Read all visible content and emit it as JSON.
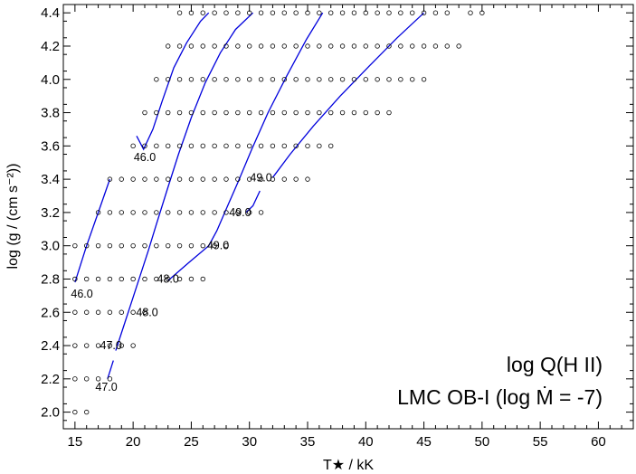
{
  "chart_data": {
    "type": "scatter",
    "title_lines": [
      "log Q(H II)",
      "LMC OB-I (log Ṁ = -7)"
    ],
    "xlabel": "T★ / kK",
    "ylabel": "log (g / (cm s⁻²))",
    "xlim": [
      14,
      63
    ],
    "ylim": [
      1.9,
      4.45
    ],
    "xticks": [
      15,
      20,
      25,
      30,
      35,
      40,
      45,
      50,
      55,
      60
    ],
    "xtick_labels": [
      "15",
      "20",
      "25",
      "30",
      "35",
      "40",
      "45",
      "50",
      "55",
      "60"
    ],
    "yticks": [
      2.0,
      2.2,
      2.4,
      2.6,
      2.8,
      3.0,
      3.2,
      3.4,
      3.6,
      3.8,
      4.0,
      4.2,
      4.4
    ],
    "ytick_labels": [
      "2.0",
      "2.2",
      "2.4",
      "2.6",
      "2.8",
      "3.0",
      "3.2",
      "3.4",
      "3.6",
      "3.8",
      "4.0",
      "4.2",
      "4.4"
    ],
    "grid": false,
    "model_grid": [
      {
        "log_g": 4.4,
        "teff_min": 24,
        "teff_max": 47,
        "extra": [
          49,
          50
        ]
      },
      {
        "log_g": 4.2,
        "teff_min": 23,
        "teff_max": 48
      },
      {
        "log_g": 4.0,
        "teff_min": 22,
        "teff_max": 45
      },
      {
        "log_g": 3.8,
        "teff_min": 21,
        "teff_max": 42
      },
      {
        "log_g": 3.6,
        "teff_min": 20,
        "teff_max": 37
      },
      {
        "log_g": 3.4,
        "teff_min": 18,
        "teff_max": 35
      },
      {
        "log_g": 3.2,
        "teff_min": 17,
        "teff_max": 31
      },
      {
        "log_g": 3.0,
        "teff_min": 15,
        "teff_max": 28
      },
      {
        "log_g": 2.8,
        "teff_min": 15,
        "teff_max": 26
      },
      {
        "log_g": 2.6,
        "teff_min": 15,
        "teff_max": 21
      },
      {
        "log_g": 2.4,
        "teff_min": 15,
        "teff_max": 20
      },
      {
        "log_g": 2.2,
        "teff_min": 15,
        "teff_max": 18
      },
      {
        "log_g": 2.0,
        "teff_min": 15,
        "teff_max": 16
      }
    ],
    "contours": [
      {
        "points": [
          [
            15.0,
            2.78
          ],
          [
            16.0,
            3.0
          ],
          [
            17.0,
            3.2
          ],
          [
            18.0,
            3.4
          ]
        ]
      },
      {
        "points": [
          [
            20.3,
            3.66
          ],
          [
            20.9,
            3.58
          ],
          [
            21.7,
            3.7
          ],
          [
            22.5,
            3.87
          ],
          [
            23.5,
            4.07
          ],
          [
            24.6,
            4.22
          ],
          [
            25.8,
            4.35
          ],
          [
            26.5,
            4.4
          ]
        ]
      },
      {
        "points": [
          [
            17.8,
            2.2
          ],
          [
            18.3,
            2.31
          ]
        ]
      },
      {
        "points": [
          [
            18.5,
            2.37
          ],
          [
            19.2,
            2.52
          ],
          [
            19.9,
            2.67
          ],
          [
            20.6,
            2.82
          ],
          [
            21.3,
            2.97
          ],
          [
            22.0,
            3.13
          ],
          [
            22.9,
            3.33
          ],
          [
            23.9,
            3.55
          ],
          [
            25.0,
            3.77
          ],
          [
            26.2,
            3.98
          ],
          [
            27.5,
            4.16
          ],
          [
            28.8,
            4.3
          ],
          [
            30.3,
            4.4
          ]
        ]
      },
      {
        "points": [
          [
            23.0,
            2.79
          ],
          [
            24.8,
            2.9
          ],
          [
            26.5,
            3.0
          ],
          [
            27.2,
            3.09
          ],
          [
            28.0,
            3.22
          ],
          [
            29.0,
            3.38
          ],
          [
            30.2,
            3.58
          ],
          [
            31.6,
            3.8
          ],
          [
            33.2,
            4.02
          ],
          [
            34.9,
            4.24
          ],
          [
            36.3,
            4.4
          ]
        ]
      },
      {
        "points": [
          [
            29.7,
            3.2
          ],
          [
            30.3,
            3.24
          ],
          [
            30.9,
            3.33
          ]
        ]
      },
      {
        "points": [
          [
            32.0,
            3.41
          ],
          [
            33.5,
            3.55
          ],
          [
            35.5,
            3.72
          ],
          [
            37.8,
            3.9
          ],
          [
            40.3,
            4.08
          ],
          [
            42.7,
            4.25
          ],
          [
            45.0,
            4.4
          ]
        ]
      }
    ],
    "contour_labels": [
      {
        "text": "46.0",
        "x": 21.0,
        "y": 3.53
      },
      {
        "text": "46.0",
        "x": 15.6,
        "y": 2.71
      },
      {
        "text": "49.0",
        "x": 31.0,
        "y": 3.41
      },
      {
        "text": "49.0",
        "x": 29.2,
        "y": 3.2
      },
      {
        "text": "49.0",
        "x": 27.3,
        "y": 3.0
      },
      {
        "text": "48.0",
        "x": 23.0,
        "y": 2.8
      },
      {
        "text": "48.0",
        "x": 21.2,
        "y": 2.6
      },
      {
        "text": "47.0",
        "x": 18.1,
        "y": 2.4
      },
      {
        "text": "47.0",
        "x": 17.7,
        "y": 2.15
      }
    ]
  }
}
